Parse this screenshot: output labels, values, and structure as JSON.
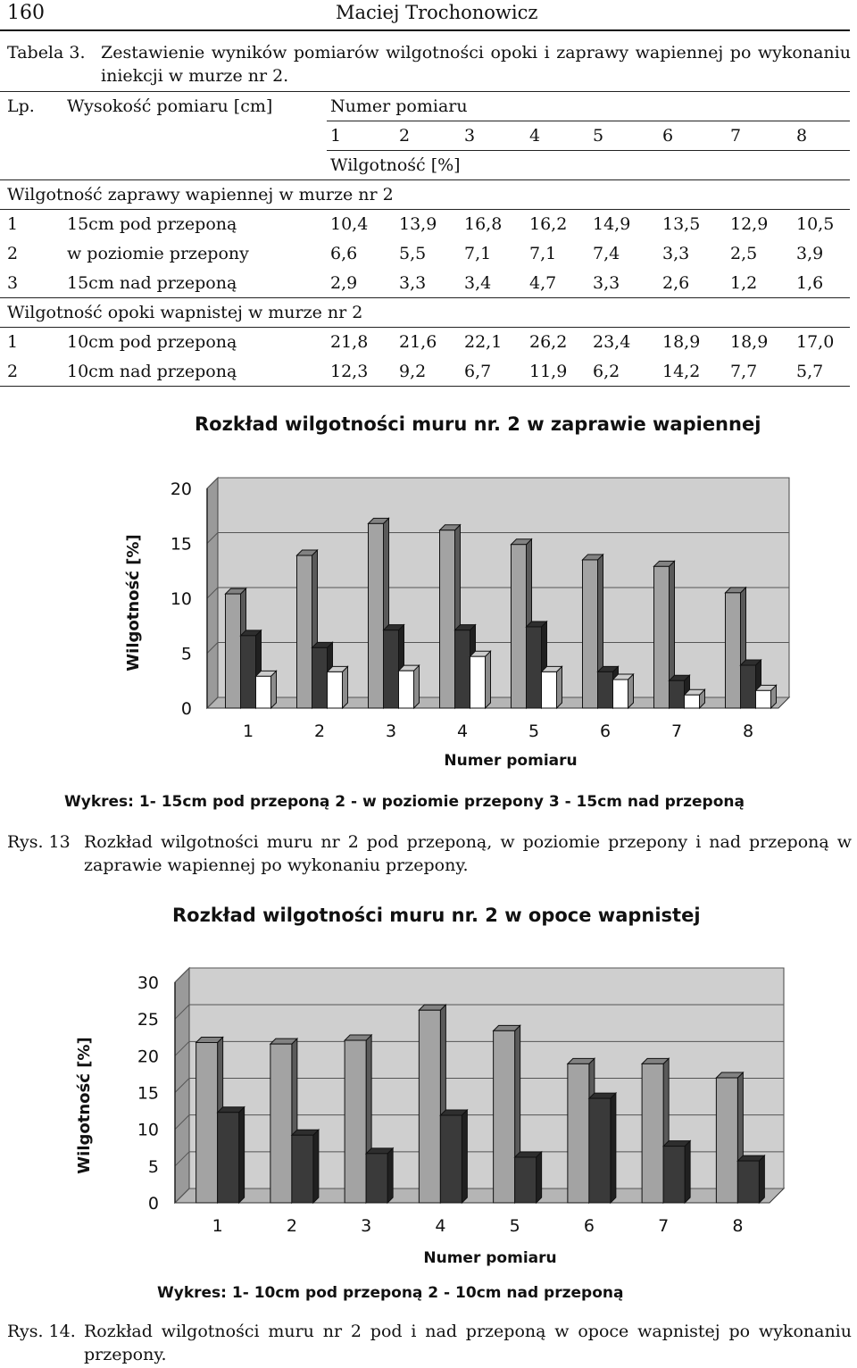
{
  "header": {
    "page_number": "160",
    "author": "Maciej Trochonowicz"
  },
  "table_caption": {
    "label": "Tabela 3.",
    "text": "Zestawienie wyników pomiarów wilgotności opoki i zaprawy wapiennej po wykonaniu iniekcji w murze nr 2."
  },
  "table": {
    "col_lp": "Lp.",
    "col_height": "Wysokość pomiaru [cm]",
    "col_number": "Numer pomiaru",
    "measurement_numbers": [
      "1",
      "2",
      "3",
      "4",
      "5",
      "6",
      "7",
      "8"
    ],
    "unit_row": "Wilgotność [%]",
    "sections": [
      {
        "title": "Wilgotność zaprawy wapiennej w murze nr 2",
        "rows": [
          {
            "lp": "1",
            "height": "15cm pod przeponą",
            "values": [
              "10,4",
              "13,9",
              "16,8",
              "16,2",
              "14,9",
              "13,5",
              "12,9",
              "10,5"
            ]
          },
          {
            "lp": "2",
            "height": "w poziomie przepony",
            "values": [
              "6,6",
              "5,5",
              "7,1",
              "7,1",
              "7,4",
              "3,3",
              "2,5",
              "3,9"
            ]
          },
          {
            "lp": "3",
            "height": "15cm nad przeponą",
            "values": [
              "2,9",
              "3,3",
              "3,4",
              "4,7",
              "3,3",
              "2,6",
              "1,2",
              "1,6"
            ]
          }
        ]
      },
      {
        "title": "Wilgotność opoki wapnistej w murze nr 2",
        "rows": [
          {
            "lp": "1",
            "height": "10cm pod przeponą",
            "values": [
              "21,8",
              "21,6",
              "22,1",
              "26,2",
              "23,4",
              "18,9",
              "18,9",
              "17,0"
            ]
          },
          {
            "lp": "2",
            "height": "10cm nad przeponą",
            "values": [
              "12,3",
              "9,2",
              "6,7",
              "11,9",
              "6,2",
              "14,2",
              "7,7",
              "5,7"
            ]
          }
        ]
      }
    ]
  },
  "chart_data": [
    {
      "type": "bar",
      "title": "Rozkład wilgotności muru nr. 2 w zaprawie wapiennej",
      "xlabel": "Numer pomiaru",
      "ylabel": "Wilgotność  [%]",
      "ylim": [
        0,
        20
      ],
      "yticks": [
        0,
        5,
        10,
        15,
        20
      ],
      "categories": [
        "1",
        "2",
        "3",
        "4",
        "5",
        "6",
        "7",
        "8"
      ],
      "series": [
        {
          "name": "1- 15cm pod przeponą",
          "color": "#a3a3a3",
          "values": [
            10.4,
            13.9,
            16.8,
            16.2,
            14.9,
            13.5,
            12.9,
            10.5
          ]
        },
        {
          "name": "2 - w poziomie przepony",
          "color": "#3a3a3a",
          "values": [
            6.6,
            5.5,
            7.1,
            7.1,
            7.4,
            3.3,
            2.5,
            3.9
          ]
        },
        {
          "name": "3 - 15cm nad przeponą",
          "color": "#ffffff",
          "values": [
            2.9,
            3.3,
            3.4,
            4.7,
            3.3,
            2.6,
            1.2,
            1.6
          ]
        }
      ],
      "legend_text": "Wykres: 1- 15cm  pod przeponą  2 - w poziomie przepony   3 - 15cm nad przeponą",
      "grid": true
    },
    {
      "type": "bar",
      "title": "Rozkład wilgotności muru nr. 2 w opoce wapnistej",
      "xlabel": "Numer pomiaru",
      "ylabel": "Wilgotność  [%]",
      "ylim": [
        0,
        30
      ],
      "yticks": [
        0,
        5,
        10,
        15,
        20,
        25,
        30
      ],
      "categories": [
        "1",
        "2",
        "3",
        "4",
        "5",
        "6",
        "7",
        "8"
      ],
      "series": [
        {
          "name": "1- 10cm pod przeponą",
          "color": "#a3a3a3",
          "values": [
            21.8,
            21.6,
            22.1,
            26.2,
            23.4,
            18.9,
            18.9,
            17.0
          ]
        },
        {
          "name": "2 - 10cm nad przeponą",
          "color": "#3a3a3a",
          "values": [
            12.3,
            9.2,
            6.7,
            11.9,
            6.2,
            14.2,
            7.7,
            5.7
          ]
        }
      ],
      "legend_text": "Wykres: 1- 10cm  pod przeponą  2 - 10cm nad przeponą",
      "grid": true
    }
  ],
  "figure_captions": [
    {
      "label": "Rys. 13",
      "text": "Rozkład wilgotności muru nr 2 pod przeponą, w poziomie przepony i nad przeponą w zaprawie wapiennej po wykonaniu przepony."
    },
    {
      "label": "Rys. 14.",
      "text": "Rozkład wilgotności muru nr 2 pod i nad przeponą w opoce wapnistej po wykonaniu przepony."
    }
  ]
}
